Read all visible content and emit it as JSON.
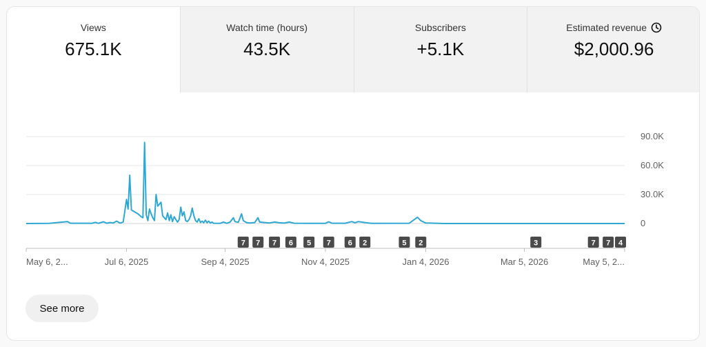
{
  "tabs": [
    {
      "label": "Views",
      "value": "675.1K",
      "active": true
    },
    {
      "label": "Watch time (hours)",
      "value": "43.5K",
      "active": false
    },
    {
      "label": "Subscribers",
      "value": "+5.1K",
      "active": false
    },
    {
      "label": "Estimated revenue",
      "value": "$2,000.96",
      "active": false,
      "icon": "clock-icon"
    }
  ],
  "see_more_label": "See more",
  "colors": {
    "line": "#2ea8d3",
    "grid": "#e5e5e5",
    "axis": "#606060",
    "marker": "#4a4a4a"
  },
  "chart_data": {
    "type": "line",
    "ylim": [
      0,
      90000
    ],
    "y_ticks": [
      {
        "value": 0,
        "label": "0"
      },
      {
        "value": 30000,
        "label": "30.0K"
      },
      {
        "value": 60000,
        "label": "60.0K"
      },
      {
        "value": 90000,
        "label": "90.0K"
      }
    ],
    "x_tick_labels": [
      {
        "label": "May 6, 2...",
        "date": "2025-05-06"
      },
      {
        "label": "Jul 6, 2025",
        "date": "2025-07-06"
      },
      {
        "label": "Sep 4, 2025",
        "date": "2025-09-04"
      },
      {
        "label": "Nov 4, 2025",
        "date": "2025-11-04"
      },
      {
        "label": "Jan 4, 2026",
        "date": "2026-01-04"
      },
      {
        "label": "Mar 5, 2026",
        "date": "2026-03-05"
      },
      {
        "label": "May 5, 2...",
        "date": "2026-05-05"
      }
    ],
    "x_range": [
      "2025-05-06",
      "2026-05-05"
    ],
    "series": [
      {
        "points": [
          [
            "2025-05-06",
            0
          ],
          [
            "2025-05-20",
            200
          ],
          [
            "2025-05-31",
            2000
          ],
          [
            "2025-06-02",
            300
          ],
          [
            "2025-06-15",
            200
          ],
          [
            "2025-06-17",
            1200
          ],
          [
            "2025-06-19",
            200
          ],
          [
            "2025-06-22",
            1800
          ],
          [
            "2025-06-24",
            300
          ],
          [
            "2025-06-26",
            1000
          ],
          [
            "2025-06-28",
            500
          ],
          [
            "2025-06-30",
            2500
          ],
          [
            "2025-07-02",
            400
          ],
          [
            "2025-07-04",
            1500
          ],
          [
            "2025-07-06",
            25000
          ],
          [
            "2025-07-07",
            15000
          ],
          [
            "2025-07-08",
            50000
          ],
          [
            "2025-07-09",
            14000
          ],
          [
            "2025-07-11",
            12000
          ],
          [
            "2025-07-13",
            10000
          ],
          [
            "2025-07-15",
            7000
          ],
          [
            "2025-07-16",
            6000
          ],
          [
            "2025-07-17",
            84000
          ],
          [
            "2025-07-18",
            9000
          ],
          [
            "2025-07-19",
            3000
          ],
          [
            "2025-07-20",
            15000
          ],
          [
            "2025-07-21",
            10000
          ],
          [
            "2025-07-22",
            6000
          ],
          [
            "2025-07-23",
            3000
          ],
          [
            "2025-07-24",
            30000
          ],
          [
            "2025-07-25",
            18000
          ],
          [
            "2025-07-27",
            22000
          ],
          [
            "2025-07-28",
            8000
          ],
          [
            "2025-07-29",
            6000
          ],
          [
            "2025-07-30",
            4000
          ],
          [
            "2025-07-31",
            11000
          ],
          [
            "2025-08-01",
            3000
          ],
          [
            "2025-08-02",
            9000
          ],
          [
            "2025-08-03",
            2000
          ],
          [
            "2025-08-04",
            7000
          ],
          [
            "2025-08-06",
            1500
          ],
          [
            "2025-08-07",
            4000
          ],
          [
            "2025-08-08",
            17000
          ],
          [
            "2025-08-09",
            8000
          ],
          [
            "2025-08-10",
            12000
          ],
          [
            "2025-08-11",
            3000
          ],
          [
            "2025-08-12",
            2000
          ],
          [
            "2025-08-13",
            4000
          ],
          [
            "2025-08-14",
            8000
          ],
          [
            "2025-08-15",
            16000
          ],
          [
            "2025-08-16",
            8000
          ],
          [
            "2025-08-17",
            3000
          ],
          [
            "2025-08-18",
            1500
          ],
          [
            "2025-08-19",
            5000
          ],
          [
            "2025-08-20",
            1000
          ],
          [
            "2025-08-21",
            2500
          ],
          [
            "2025-08-22",
            800
          ],
          [
            "2025-08-23",
            3500
          ],
          [
            "2025-08-24",
            800
          ],
          [
            "2025-08-25",
            2500
          ],
          [
            "2025-08-26",
            500
          ],
          [
            "2025-08-27",
            1500
          ],
          [
            "2025-08-28",
            300
          ],
          [
            "2025-09-01",
            200
          ],
          [
            "2025-09-03",
            1500
          ],
          [
            "2025-09-05",
            200
          ],
          [
            "2025-09-07",
            1500
          ],
          [
            "2025-09-09",
            6000
          ],
          [
            "2025-09-10",
            2000
          ],
          [
            "2025-09-12",
            1200
          ],
          [
            "2025-09-14",
            10000
          ],
          [
            "2025-09-15",
            3000
          ],
          [
            "2025-09-17",
            1000
          ],
          [
            "2025-09-19",
            500
          ],
          [
            "2025-09-22",
            1000
          ],
          [
            "2025-09-24",
            6000
          ],
          [
            "2025-09-25",
            1500
          ],
          [
            "2025-09-28",
            1000
          ],
          [
            "2025-10-01",
            600
          ],
          [
            "2025-10-04",
            1500
          ],
          [
            "2025-10-07",
            800
          ],
          [
            "2025-10-10",
            400
          ],
          [
            "2025-10-13",
            1500
          ],
          [
            "2025-10-16",
            300
          ],
          [
            "2025-10-25",
            200
          ],
          [
            "2025-11-04",
            200
          ],
          [
            "2025-11-06",
            1800
          ],
          [
            "2025-11-08",
            300
          ],
          [
            "2025-11-16",
            300
          ],
          [
            "2025-11-20",
            2000
          ],
          [
            "2025-11-22",
            800
          ],
          [
            "2025-11-24",
            2000
          ],
          [
            "2025-11-26",
            1500
          ],
          [
            "2025-11-28",
            1000
          ],
          [
            "2025-12-02",
            200
          ],
          [
            "2025-12-25",
            300
          ],
          [
            "2025-12-30",
            6500
          ],
          [
            "2026-01-01",
            3000
          ],
          [
            "2026-01-04",
            500
          ],
          [
            "2026-01-15",
            0
          ],
          [
            "2026-05-05",
            0
          ]
        ]
      }
    ],
    "annotations": [
      {
        "date": "2025-09-15",
        "label": "7"
      },
      {
        "date": "2025-09-24",
        "label": "7"
      },
      {
        "date": "2025-10-04",
        "label": "7"
      },
      {
        "date": "2025-10-14",
        "label": "6"
      },
      {
        "date": "2025-10-25",
        "label": "5"
      },
      {
        "date": "2025-11-06",
        "label": "7"
      },
      {
        "date": "2025-11-19",
        "label": "6"
      },
      {
        "date": "2025-11-28",
        "label": "2"
      },
      {
        "date": "2025-12-22",
        "label": "5"
      },
      {
        "date": "2026-01-01",
        "label": "2"
      },
      {
        "date": "2026-03-12",
        "label": "3"
      },
      {
        "date": "2026-04-16",
        "label": "7"
      },
      {
        "date": "2026-04-25",
        "label": "7"
      },
      {
        "date": "2026-05-09",
        "label": "4"
      }
    ]
  }
}
